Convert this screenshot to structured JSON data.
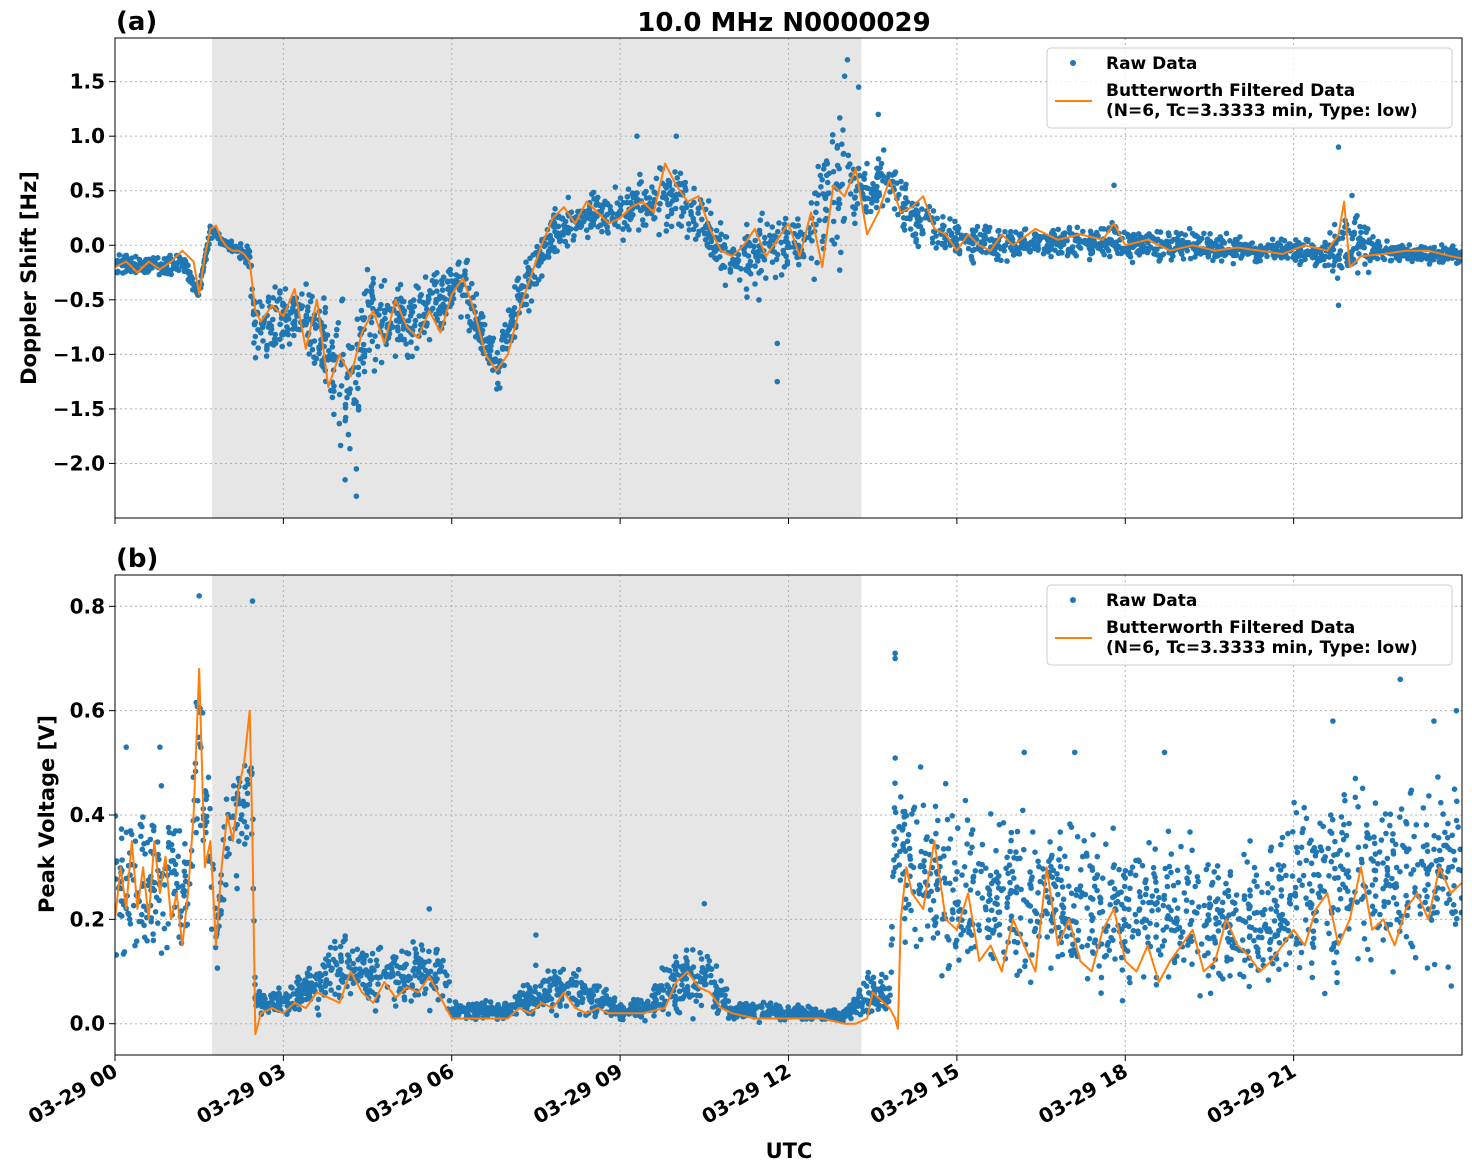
{
  "figure": {
    "suptitle": "10.0 MHz N0000029",
    "xlabel": "UTC",
    "colors": {
      "raw": "#1f77b4",
      "filtered": "#ff7f0e",
      "shade": "#e6e6e6",
      "grid": "#b0b0b0"
    }
  },
  "chart_data": [
    {
      "type": "line",
      "panel_label": "(a)",
      "ylabel": "Doppler Shift [Hz]",
      "x_unit": "hours since 03-29 00:00 UTC",
      "xlim": [
        0,
        24
      ],
      "ylim": [
        -2.5,
        1.9
      ],
      "x_ticks": [
        0,
        3,
        6,
        9,
        12,
        15,
        18,
        21
      ],
      "x_tick_labels": [
        "03-29 00",
        "03-29 03",
        "03-29 06",
        "03-29 09",
        "03-29 12",
        "03-29 15",
        "03-29 18",
        "03-29 21"
      ],
      "y_ticks": [
        -2.0,
        -1.5,
        -1.0,
        -0.5,
        0.0,
        0.5,
        1.0,
        1.5
      ],
      "y_tick_labels": [
        "−2.0",
        "−1.5",
        "−1.0",
        "−0.5",
        "0.0",
        "0.5",
        "1.0",
        "1.5"
      ],
      "grid": true,
      "legend_placement": "upper right",
      "shaded_interval": [
        1.73,
        13.3
      ],
      "series": [
        {
          "name": "Raw Data",
          "style": "scatter",
          "envelope_x": [
            0,
            0.5,
            1.2,
            1.5,
            1.7,
            2.0,
            2.4,
            2.5,
            3.0,
            3.3,
            3.8,
            4.2,
            4.5,
            5.2,
            5.8,
            6.2,
            6.8,
            7.2,
            7.8,
            8.5,
            9.0,
            9.5,
            10.0,
            10.5,
            11.0,
            11.5,
            12.0,
            12.5,
            12.9,
            13.4,
            13.8,
            14.2,
            14.8,
            15.5,
            16.5,
            17.5,
            18.5,
            19.5,
            20.5,
            21.5,
            22.0,
            22.5,
            23.0,
            24.0
          ],
          "envelope_low": [
            -0.32,
            -0.32,
            -0.28,
            -0.52,
            0.05,
            -0.05,
            -0.25,
            -1.3,
            -1.2,
            -1.05,
            -1.5,
            -2.3,
            -1.3,
            -1.2,
            -0.85,
            -0.85,
            -1.4,
            -1.0,
            -0.2,
            0.05,
            -0.05,
            0.05,
            0.0,
            -0.2,
            -0.5,
            -0.6,
            -0.3,
            -0.45,
            -0.3,
            0.1,
            0.25,
            -0.05,
            -0.2,
            -0.2,
            -0.15,
            -0.2,
            -0.18,
            -0.2,
            -0.2,
            -0.25,
            -0.55,
            -0.2,
            -0.2,
            -0.2
          ],
          "envelope_high": [
            -0.05,
            -0.05,
            -0.05,
            -0.35,
            0.22,
            0.05,
            0.05,
            -0.2,
            -0.25,
            -0.15,
            -0.3,
            -0.45,
            -0.1,
            -0.15,
            -0.15,
            0.05,
            -0.8,
            0.0,
            0.4,
            0.55,
            0.6,
            0.85,
            0.85,
            0.6,
            0.2,
            0.5,
            0.3,
            0.9,
            1.45,
            0.9,
            1.05,
            0.55,
            0.35,
            0.2,
            0.2,
            0.25,
            0.2,
            0.15,
            0.1,
            0.1,
            0.6,
            0.1,
            0.05,
            0.0
          ],
          "outliers": [
            [
              3.9,
              -1.55
            ],
            [
              4.3,
              -2.05
            ],
            [
              4.3,
              -2.3
            ],
            [
              4.1,
              -2.15
            ],
            [
              9.3,
              1.0
            ],
            [
              10.0,
              1.0
            ],
            [
              11.8,
              -0.9
            ],
            [
              11.8,
              -1.25
            ],
            [
              12.6,
              0.6
            ],
            [
              13.0,
              1.55
            ],
            [
              13.05,
              1.7
            ],
            [
              13.25,
              1.45
            ],
            [
              13.6,
              1.2
            ],
            [
              17.8,
              0.55
            ],
            [
              21.8,
              0.9
            ],
            [
              21.8,
              -0.55
            ]
          ]
        },
        {
          "name": "Butterworth Filtered Data\n(N=6, Tc=3.3333 min, Type: low)",
          "style": "line",
          "x": [
            0,
            0.2,
            0.4,
            0.6,
            0.8,
            1.0,
            1.2,
            1.4,
            1.5,
            1.6,
            1.7,
            1.8,
            1.9,
            2.0,
            2.1,
            2.2,
            2.3,
            2.4,
            2.5,
            2.6,
            2.8,
            3.0,
            3.2,
            3.4,
            3.6,
            3.8,
            4.0,
            4.2,
            4.4,
            4.6,
            4.8,
            5.0,
            5.2,
            5.4,
            5.6,
            5.8,
            6.0,
            6.2,
            6.4,
            6.6,
            6.8,
            7.0,
            7.2,
            7.4,
            7.6,
            7.8,
            8.0,
            8.2,
            8.4,
            8.6,
            8.8,
            9.0,
            9.2,
            9.4,
            9.6,
            9.8,
            10.0,
            10.2,
            10.4,
            10.6,
            10.8,
            11.0,
            11.2,
            11.4,
            11.6,
            11.8,
            12.0,
            12.2,
            12.4,
            12.6,
            12.8,
            13.0,
            13.2,
            13.4,
            13.6,
            13.8,
            14.0,
            14.2,
            14.4,
            14.6,
            14.8,
            15.0,
            15.2,
            15.4,
            15.6,
            15.8,
            16.0,
            16.4,
            16.8,
            17.2,
            17.6,
            17.8,
            18.0,
            18.4,
            18.8,
            19.2,
            19.6,
            20.0,
            20.4,
            20.8,
            21.2,
            21.6,
            21.8,
            21.9,
            22.0,
            22.2,
            22.6,
            23.0,
            23.4,
            23.8,
            24.0
          ],
          "y": [
            -0.2,
            -0.15,
            -0.25,
            -0.15,
            -0.22,
            -0.15,
            -0.05,
            -0.15,
            -0.45,
            -0.1,
            0.15,
            0.18,
            0.05,
            -0.02,
            -0.05,
            -0.05,
            -0.08,
            -0.15,
            -0.6,
            -0.7,
            -0.55,
            -0.65,
            -0.4,
            -0.95,
            -0.5,
            -1.3,
            -1.0,
            -1.2,
            -0.8,
            -0.6,
            -0.9,
            -0.5,
            -0.75,
            -0.85,
            -0.6,
            -0.8,
            -0.45,
            -0.3,
            -0.6,
            -1.0,
            -1.15,
            -1.0,
            -0.6,
            -0.3,
            0.0,
            0.25,
            0.35,
            0.2,
            0.4,
            0.3,
            0.2,
            0.25,
            0.35,
            0.4,
            0.3,
            0.75,
            0.55,
            0.4,
            0.45,
            0.15,
            -0.05,
            -0.1,
            0.0,
            0.15,
            -0.1,
            0.05,
            0.2,
            -0.1,
            0.3,
            -0.2,
            0.55,
            0.45,
            0.7,
            0.1,
            0.3,
            0.6,
            0.3,
            0.35,
            0.45,
            0.15,
            0.1,
            -0.05,
            0.1,
            0.0,
            -0.05,
            0.1,
            0.0,
            0.15,
            0.05,
            0.1,
            0.05,
            0.2,
            0.0,
            0.05,
            -0.05,
            0.0,
            -0.05,
            -0.02,
            -0.05,
            -0.08,
            0.0,
            -0.05,
            0.1,
            0.4,
            -0.2,
            -0.1,
            -0.08,
            -0.05,
            -0.05,
            -0.1,
            -0.12
          ]
        }
      ]
    },
    {
      "type": "line",
      "panel_label": "(b)",
      "ylabel": "Peak Voltage [V]",
      "x_unit": "hours since 03-29 00:00 UTC",
      "xlim": [
        0,
        24
      ],
      "ylim": [
        -0.06,
        0.86
      ],
      "x_ticks": [
        0,
        3,
        6,
        9,
        12,
        15,
        18,
        21
      ],
      "x_tick_labels": [
        "03-29 00",
        "03-29 03",
        "03-29 06",
        "03-29 09",
        "03-29 12",
        "03-29 15",
        "03-29 18",
        "03-29 21"
      ],
      "y_ticks": [
        0.0,
        0.2,
        0.4,
        0.6,
        0.8
      ],
      "y_tick_labels": [
        "0.0",
        "0.2",
        "0.4",
        "0.6",
        "0.8"
      ],
      "grid": true,
      "legend_placement": "upper right",
      "shaded_interval": [
        1.73,
        13.3
      ],
      "series": [
        {
          "name": "Raw Data",
          "style": "scatter",
          "envelope_x": [
            0,
            0.5,
            1.0,
            1.3,
            1.5,
            1.7,
            1.8,
            2.0,
            2.3,
            2.45,
            2.5,
            3.0,
            3.5,
            4.0,
            4.5,
            5.0,
            5.5,
            5.9,
            6.0,
            7.0,
            7.5,
            8.0,
            8.5,
            9.0,
            9.5,
            10.0,
            10.5,
            11.0,
            11.5,
            12.0,
            12.5,
            13.0,
            13.4,
            13.8,
            13.9,
            14.0,
            14.5,
            15.0,
            16.0,
            17.0,
            18.0,
            19.0,
            20.0,
            20.5,
            21.0,
            21.5,
            22.0,
            22.5,
            23.0,
            23.5,
            24.0
          ],
          "envelope_low": [
            0.1,
            0.08,
            0.06,
            0.1,
            0.3,
            0.15,
            0.05,
            0.2,
            0.25,
            0.2,
            0.01,
            0.01,
            0.01,
            0.01,
            0.01,
            0.01,
            0.01,
            0.01,
            0.0,
            0.0,
            0.0,
            0.0,
            0.0,
            0.0,
            0.0,
            0.0,
            0.0,
            0.0,
            0.0,
            0.0,
            0.0,
            0.0,
            0.0,
            0.0,
            0.1,
            0.1,
            0.05,
            0.04,
            0.03,
            0.02,
            0.02,
            0.02,
            0.02,
            0.03,
            0.02,
            0.03,
            0.03,
            0.04,
            0.04,
            0.04,
            0.05
          ],
          "envelope_high": [
            0.45,
            0.45,
            0.5,
            0.4,
            0.82,
            0.45,
            0.3,
            0.5,
            0.6,
            0.65,
            0.07,
            0.08,
            0.12,
            0.2,
            0.18,
            0.16,
            0.2,
            0.15,
            0.05,
            0.05,
            0.12,
            0.14,
            0.1,
            0.05,
            0.06,
            0.18,
            0.18,
            0.05,
            0.05,
            0.04,
            0.04,
            0.03,
            0.12,
            0.1,
            0.6,
            0.55,
            0.5,
            0.45,
            0.45,
            0.45,
            0.4,
            0.4,
            0.38,
            0.38,
            0.45,
            0.5,
            0.55,
            0.5,
            0.55,
            0.5,
            0.55
          ],
          "outliers": [
            [
              0.2,
              0.53
            ],
            [
              0.8,
              0.53
            ],
            [
              1.5,
              0.82
            ],
            [
              2.45,
              0.81
            ],
            [
              5.6,
              0.22
            ],
            [
              7.5,
              0.17
            ],
            [
              10.5,
              0.23
            ],
            [
              13.9,
              0.71
            ],
            [
              13.9,
              0.7
            ],
            [
              14.8,
              0.46
            ],
            [
              16.2,
              0.52
            ],
            [
              17.1,
              0.52
            ],
            [
              18.7,
              0.52
            ],
            [
              21.7,
              0.58
            ],
            [
              22.1,
              0.47
            ],
            [
              22.9,
              0.66
            ],
            [
              23.5,
              0.58
            ],
            [
              23.9,
              0.6
            ]
          ]
        },
        {
          "name": "Butterworth Filtered Data\n(N=6, Tc=3.3333 min, Type: low)",
          "style": "line",
          "x": [
            0,
            0.1,
            0.2,
            0.3,
            0.4,
            0.5,
            0.6,
            0.7,
            0.8,
            0.9,
            1.0,
            1.1,
            1.2,
            1.3,
            1.4,
            1.5,
            1.6,
            1.7,
            1.8,
            1.9,
            2.0,
            2.1,
            2.2,
            2.3,
            2.4,
            2.45,
            2.5,
            2.6,
            2.8,
            3.0,
            3.2,
            3.4,
            3.6,
            3.8,
            4.0,
            4.2,
            4.4,
            4.6,
            4.8,
            5.0,
            5.2,
            5.4,
            5.6,
            5.8,
            6.0,
            6.5,
            7.0,
            7.2,
            7.4,
            7.6,
            7.8,
            8.0,
            8.2,
            8.4,
            8.6,
            8.8,
            9.0,
            9.4,
            9.8,
            10.0,
            10.2,
            10.4,
            10.6,
            10.8,
            11.0,
            11.4,
            11.8,
            12.2,
            12.6,
            13.0,
            13.2,
            13.4,
            13.5,
            13.6,
            13.8,
            13.9,
            13.95,
            14.0,
            14.1,
            14.2,
            14.4,
            14.6,
            14.8,
            15.0,
            15.2,
            15.4,
            15.6,
            15.8,
            16.0,
            16.2,
            16.4,
            16.6,
            16.8,
            17.0,
            17.2,
            17.4,
            17.6,
            17.8,
            18.0,
            18.2,
            18.4,
            18.6,
            18.8,
            19.0,
            19.2,
            19.4,
            19.6,
            19.8,
            20.0,
            20.2,
            20.4,
            20.6,
            20.8,
            21.0,
            21.2,
            21.4,
            21.6,
            21.8,
            22.0,
            22.2,
            22.4,
            22.6,
            22.8,
            23.0,
            23.2,
            23.4,
            23.6,
            23.8,
            24.0
          ],
          "y": [
            0.2,
            0.3,
            0.22,
            0.35,
            0.22,
            0.3,
            0.2,
            0.35,
            0.25,
            0.32,
            0.2,
            0.25,
            0.15,
            0.25,
            0.4,
            0.68,
            0.3,
            0.35,
            0.15,
            0.3,
            0.4,
            0.35,
            0.45,
            0.5,
            0.6,
            0.35,
            -0.02,
            0.02,
            0.03,
            0.02,
            0.04,
            0.03,
            0.06,
            0.05,
            0.04,
            0.1,
            0.06,
            0.04,
            0.08,
            0.05,
            0.07,
            0.06,
            0.09,
            0.05,
            0.01,
            0.01,
            0.01,
            0.03,
            0.02,
            0.04,
            0.03,
            0.06,
            0.03,
            0.02,
            0.03,
            0.02,
            0.02,
            0.02,
            0.03,
            0.08,
            0.1,
            0.07,
            0.06,
            0.03,
            0.02,
            0.01,
            0.01,
            0.01,
            0.01,
            0.0,
            0.0,
            0.01,
            0.06,
            0.05,
            0.03,
            0.01,
            -0.01,
            0.2,
            0.3,
            0.25,
            0.22,
            0.35,
            0.2,
            0.18,
            0.25,
            0.12,
            0.15,
            0.1,
            0.2,
            0.15,
            0.1,
            0.3,
            0.15,
            0.2,
            0.12,
            0.1,
            0.18,
            0.22,
            0.12,
            0.1,
            0.15,
            0.08,
            0.12,
            0.15,
            0.18,
            0.1,
            0.12,
            0.2,
            0.15,
            0.13,
            0.1,
            0.12,
            0.15,
            0.18,
            0.15,
            0.22,
            0.25,
            0.15,
            0.2,
            0.3,
            0.18,
            0.2,
            0.15,
            0.22,
            0.25,
            0.2,
            0.3,
            0.25,
            0.27
          ]
        }
      ]
    }
  ]
}
